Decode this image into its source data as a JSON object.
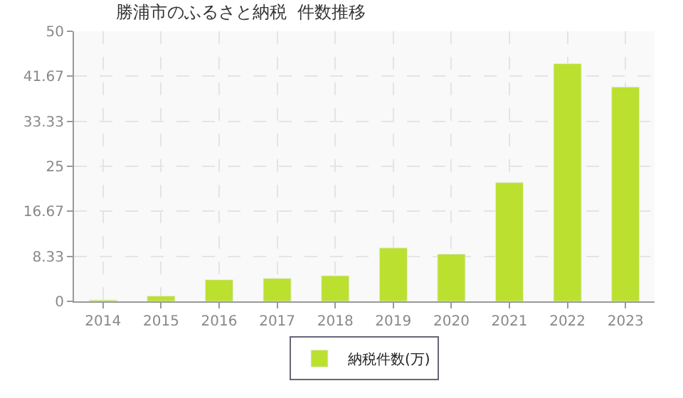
{
  "chart_data": {
    "type": "bar",
    "title": "勝浦市のふるさと納税  件数推移",
    "categories": [
      "2014",
      "2015",
      "2016",
      "2017",
      "2018",
      "2019",
      "2020",
      "2021",
      "2022",
      "2023"
    ],
    "series": [
      {
        "name": "納税件数(万)",
        "color": "#bbe02f",
        "values": [
          0.25,
          1.0,
          4.0,
          4.25,
          4.75,
          9.9,
          8.75,
          22.0,
          44.0,
          39.7
        ]
      }
    ],
    "ylim": [
      0,
      50
    ],
    "yticks": [
      0,
      8.33,
      16.67,
      25,
      33.33,
      41.67,
      50
    ],
    "grid": true,
    "legend": "bottom"
  }
}
